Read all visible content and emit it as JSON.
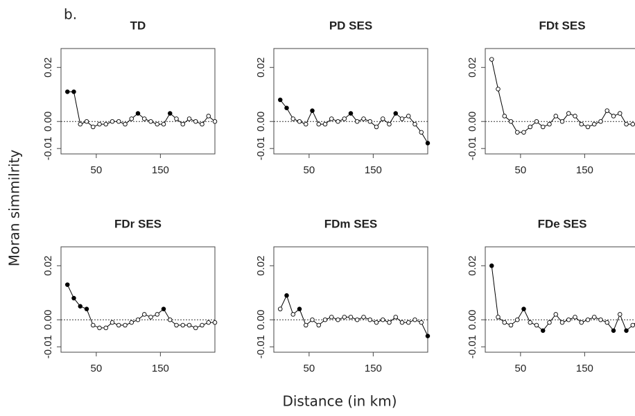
{
  "panel_label": "b.",
  "ylabel": "Moran simmilrity",
  "xlabel": "Distance (in km)",
  "chart_data": [
    {
      "type": "line",
      "title": "TD",
      "x": [
        5,
        15,
        25,
        35,
        45,
        55,
        65,
        75,
        85,
        95,
        105,
        115,
        125,
        135,
        145,
        155,
        165,
        175,
        185,
        195,
        205,
        215,
        225,
        235
      ],
      "series": [
        {
          "color": "#000000",
          "values": [
            0.011,
            0.011,
            -0.001,
            0,
            -0.002,
            -0.001,
            -0.001,
            0,
            0,
            -0.001,
            0.001,
            0.003,
            0.001,
            0,
            -0.001,
            -0.001,
            0.003,
            0.001,
            -0.001,
            0.001,
            0,
            -0.001,
            0.002,
            0
          ],
          "filled": [
            true,
            true,
            false,
            false,
            false,
            false,
            false,
            false,
            false,
            false,
            false,
            true,
            false,
            false,
            false,
            false,
            true,
            false,
            false,
            false,
            false,
            false,
            false,
            false
          ]
        }
      ],
      "xlim": [
        -5,
        235
      ],
      "ylim": [
        -0.012,
        0.027
      ],
      "xticks": [
        50,
        150
      ],
      "yticks": [
        -0.01,
        {
          "value": 0,
          "label": "0.00"
        },
        0.02
      ],
      "reference_line": 0
    },
    {
      "type": "line",
      "title": "PD SES",
      "x": [
        5,
        15,
        25,
        35,
        45,
        55,
        65,
        75,
        85,
        95,
        105,
        115,
        125,
        135,
        145,
        155,
        165,
        175,
        185,
        195,
        205,
        215,
        225,
        235
      ],
      "series": [
        {
          "color": "#000000",
          "values": [
            0.008,
            0.005,
            0.001,
            0,
            -0.001,
            0.004,
            -0.001,
            -0.001,
            0.001,
            0,
            0.001,
            0.003,
            0,
            0.001,
            0,
            -0.002,
            0.001,
            -0.001,
            0.003,
            0.001,
            0.002,
            -0.001,
            -0.004,
            -0.008
          ],
          "filled": [
            true,
            true,
            false,
            false,
            false,
            true,
            false,
            false,
            false,
            false,
            false,
            true,
            false,
            false,
            false,
            false,
            false,
            false,
            true,
            false,
            false,
            false,
            false,
            true
          ]
        }
      ],
      "xlim": [
        -5,
        235
      ],
      "ylim": [
        -0.012,
        0.027
      ],
      "xticks": [
        50,
        150
      ],
      "yticks": [
        -0.01,
        {
          "value": 0,
          "label": "0.00"
        },
        0.02
      ],
      "reference_line": 0
    },
    {
      "type": "line",
      "title": "FDt SES",
      "x": [
        5,
        15,
        25,
        35,
        45,
        55,
        65,
        75,
        85,
        95,
        105,
        115,
        125,
        135,
        145,
        155,
        165,
        175,
        185,
        195,
        205,
        215,
        225,
        235
      ],
      "series": [
        {
          "color": "#000000",
          "values": [
            0.023,
            0.012,
            0.002,
            0,
            -0.004,
            -0.004,
            -0.002,
            0,
            -0.002,
            -0.001,
            0.002,
            0,
            0.003,
            0.002,
            -0.001,
            -0.002,
            -0.001,
            0,
            0.004,
            0.002,
            0.003,
            -0.001,
            -0.001,
            -0.001
          ],
          "filled": [
            false,
            false,
            false,
            false,
            false,
            false,
            false,
            false,
            false,
            false,
            false,
            false,
            false,
            false,
            false,
            false,
            false,
            false,
            false,
            false,
            false,
            false,
            false,
            false
          ]
        }
      ],
      "xlim": [
        -5,
        235
      ],
      "ylim": [
        -0.012,
        0.027
      ],
      "xticks": [
        50,
        150
      ],
      "yticks": [
        -0.01,
        {
          "value": 0,
          "label": "0.00"
        },
        0.02
      ],
      "reference_line": 0
    },
    {
      "type": "line",
      "title": "FDr SES",
      "x": [
        5,
        15,
        25,
        35,
        45,
        55,
        65,
        75,
        85,
        95,
        105,
        115,
        125,
        135,
        145,
        155,
        165,
        175,
        185,
        195,
        205,
        215,
        225,
        235
      ],
      "series": [
        {
          "color": "#000000",
          "values": [
            0.013,
            0.008,
            0.005,
            0.004,
            -0.002,
            -0.003,
            -0.003,
            -0.001,
            -0.002,
            -0.002,
            -0.001,
            0,
            0.002,
            0.001,
            0.002,
            0.004,
            0,
            -0.002,
            -0.002,
            -0.002,
            -0.003,
            -0.002,
            -0.001,
            -0.001
          ],
          "filled": [
            true,
            true,
            true,
            true,
            false,
            false,
            false,
            false,
            false,
            false,
            false,
            false,
            false,
            false,
            false,
            true,
            false,
            false,
            false,
            false,
            false,
            false,
            false,
            false
          ]
        }
      ],
      "xlim": [
        -5,
        235
      ],
      "ylim": [
        -0.012,
        0.027
      ],
      "xticks": [
        50,
        150
      ],
      "yticks": [
        -0.01,
        {
          "value": 0,
          "label": "0.00"
        },
        0.02
      ],
      "reference_line": 0
    },
    {
      "type": "line",
      "title": "FDm SES",
      "x": [
        5,
        15,
        25,
        35,
        45,
        55,
        65,
        75,
        85,
        95,
        105,
        115,
        125,
        135,
        145,
        155,
        165,
        175,
        185,
        195,
        205,
        215,
        225,
        235
      ],
      "series": [
        {
          "color": "#000000",
          "values": [
            0.004,
            0.009,
            0.002,
            0.004,
            -0.002,
            0,
            -0.002,
            0,
            0.001,
            0,
            0.001,
            0.001,
            0,
            0.001,
            0,
            -0.001,
            0,
            -0.001,
            0.001,
            -0.001,
            -0.001,
            0,
            -0.001,
            -0.006
          ],
          "filled": [
            false,
            true,
            false,
            true,
            false,
            false,
            false,
            false,
            false,
            false,
            false,
            false,
            false,
            false,
            false,
            false,
            false,
            false,
            false,
            false,
            false,
            false,
            false,
            true
          ]
        }
      ],
      "xlim": [
        -5,
        235
      ],
      "ylim": [
        -0.012,
        0.027
      ],
      "xticks": [
        50,
        150
      ],
      "yticks": [
        -0.01,
        {
          "value": 0,
          "label": "0.00"
        },
        0.02
      ],
      "reference_line": 0
    },
    {
      "type": "line",
      "title": "FDe SES",
      "x": [
        5,
        15,
        25,
        35,
        45,
        55,
        65,
        75,
        85,
        95,
        105,
        115,
        125,
        135,
        145,
        155,
        165,
        175,
        185,
        195,
        205,
        215,
        225,
        235
      ],
      "series": [
        {
          "color": "#000000",
          "values": [
            0.02,
            0.001,
            -0.001,
            -0.002,
            0,
            0.004,
            -0.001,
            -0.002,
            -0.004,
            -0.001,
            0.002,
            -0.001,
            0,
            0.001,
            -0.001,
            0,
            0.001,
            0,
            -0.001,
            -0.004,
            0.002,
            -0.004,
            -0.002,
            0
          ],
          "filled": [
            true,
            false,
            false,
            false,
            false,
            true,
            false,
            false,
            true,
            false,
            false,
            false,
            false,
            false,
            false,
            false,
            false,
            false,
            false,
            true,
            false,
            true,
            false,
            false
          ]
        }
      ],
      "xlim": [
        -5,
        235
      ],
      "ylim": [
        -0.012,
        0.027
      ],
      "xticks": [
        50,
        150
      ],
      "yticks": [
        -0.01,
        {
          "value": 0,
          "label": "0.00"
        },
        0.02
      ],
      "reference_line": 0
    }
  ]
}
